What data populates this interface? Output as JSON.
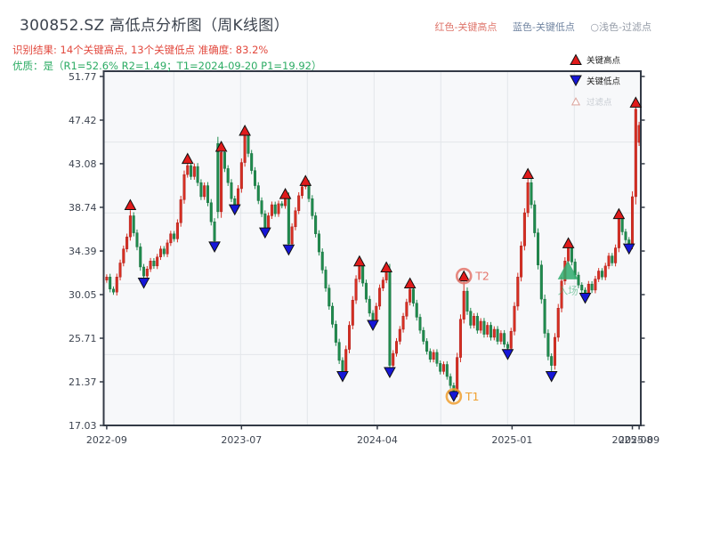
{
  "header": {
    "title": "300852.SZ 高低点分析图（周K线图）",
    "subtitle_result": "识别结果: 14个关键高点, 13个关键低点  准确度: 83.2%",
    "subtitle_quality": "优质：是（R1=52.6%  R2=1.49；T1=2024-09-20 P1=19.92）",
    "color_key": [
      {
        "label": "红色-关键高点",
        "color": "#df766c"
      },
      {
        "label": "蓝色-关键低点",
        "color": "#7286a2"
      },
      {
        "label": "○浅色-过滤点",
        "color": "#959ca8"
      }
    ]
  },
  "legend": {
    "items": [
      {
        "label": "关键高点",
        "marker": "triangle-up",
        "fill": "#e11b1b",
        "stroke": "#111111",
        "text": "#222222"
      },
      {
        "label": "关键低点",
        "marker": "triangle-down",
        "fill": "#1616d8",
        "stroke": "#111111",
        "text": "#222222"
      },
      {
        "label": "过滤点",
        "marker": "triangle-up-open",
        "fill": "#ffffff",
        "stroke": "#dca49c",
        "text": "#c6cbd1"
      }
    ]
  },
  "chart_data": {
    "type": "candlestick",
    "timeframe": "weekly",
    "title": "300852.SZ 高低点分析图（周K线图）",
    "ylim": [
      17.03,
      52.29
    ],
    "yticks": [
      51.77,
      47.42,
      43.08,
      38.74,
      34.39,
      30.05,
      25.71,
      21.37,
      17.03
    ],
    "xticks": [
      {
        "week": 0,
        "label": "2022-09"
      },
      {
        "week": 40,
        "label": "2023-07"
      },
      {
        "week": 80.3,
        "label": "2024-04"
      },
      {
        "week": 120.3,
        "label": "2025-01"
      },
      {
        "week": 156,
        "label": "2025-08"
      },
      {
        "week": 158,
        "label": "2025-09"
      }
    ],
    "first_open": 31.5,
    "closes": [
      31.8,
      30.6,
      30.3,
      31.8,
      33.2,
      34.6,
      35.8,
      37.9,
      36.2,
      34.8,
      32.8,
      31.9,
      32.6,
      33.4,
      32.9,
      33.8,
      34.6,
      34.1,
      35.2,
      36.1,
      35.6,
      37.2,
      39.5,
      42.0,
      42.9,
      41.8,
      42.8,
      41.2,
      39.8,
      40.9,
      39.2,
      37.3,
      35.4,
      38.3,
      44.2,
      42.6,
      41.2,
      39.6,
      38.9,
      40.6,
      43.2,
      45.9,
      44.1,
      42.4,
      40.9,
      39.4,
      38.1,
      36.6,
      37.9,
      39.0,
      38.1,
      39.1,
      38.9,
      39.7,
      35.1,
      36.8,
      38.4,
      39.9,
      40.8,
      41.1,
      39.6,
      37.9,
      36.1,
      34.3,
      32.5,
      30.7,
      28.9,
      27.1,
      25.3,
      23.5,
      22.4,
      24.6,
      27.0,
      29.5,
      31.6,
      32.9,
      31.2,
      29.6,
      28.2,
      27.4,
      28.9,
      30.7,
      31.5,
      32.3,
      23.0,
      24.2,
      25.4,
      26.6,
      27.9,
      29.3,
      30.6,
      29.2,
      27.8,
      26.5,
      25.4,
      24.4,
      23.6,
      24.3,
      23.2,
      22.4,
      23.1,
      21.9,
      21.0,
      20.3,
      23.8,
      27.6,
      30.4,
      28.4,
      27.0,
      27.9,
      26.5,
      27.4,
      26.1,
      27.0,
      25.8,
      26.6,
      25.4,
      26.2,
      25.1,
      24.7,
      26.4,
      28.9,
      31.8,
      34.9,
      38.2,
      41.2,
      39.0,
      36.2,
      33.0,
      29.6,
      26.2,
      23.9,
      23.0,
      25.8,
      28.7,
      31.4,
      33.4,
      34.8,
      33.3,
      32.0,
      31.0,
      30.5,
      30.1,
      31.1,
      30.5,
      31.6,
      32.4,
      31.8,
      32.9,
      33.9,
      33.2,
      34.7,
      37.6,
      36.3,
      35.5,
      35.1,
      39.8,
      48.5,
      46.9
    ],
    "open_overrides": {
      "33": 45.1,
      "158": 45.2
    },
    "key_highs": [
      [
        7,
        39.0
      ],
      [
        24,
        43.6
      ],
      [
        34,
        44.8
      ],
      [
        41,
        46.4
      ],
      [
        53,
        40.1
      ],
      [
        59,
        41.4
      ],
      [
        75,
        33.4
      ],
      [
        83,
        32.8
      ],
      [
        90,
        31.2
      ],
      [
        106,
        31.9
      ],
      [
        125,
        42.1
      ],
      [
        137,
        35.2
      ],
      [
        152,
        38.1
      ],
      [
        157,
        49.2
      ]
    ],
    "key_lows": [
      [
        11,
        31.2
      ],
      [
        32,
        34.8
      ],
      [
        38,
        38.5
      ],
      [
        47,
        36.2
      ],
      [
        54,
        34.5
      ],
      [
        70,
        21.9
      ],
      [
        79,
        27.0
      ],
      [
        84,
        22.3
      ],
      [
        103,
        19.92
      ],
      [
        119,
        24.1
      ],
      [
        132,
        21.9
      ],
      [
        142,
        29.7
      ],
      [
        155,
        34.6
      ]
    ],
    "annotations": {
      "t1": {
        "week": 103,
        "price": 19.92,
        "label": "T1",
        "color": "#f0a030"
      },
      "t2": {
        "week": 106,
        "price": 31.9,
        "label": "T2",
        "color": "#e4756b"
      },
      "entry": {
        "week": 137,
        "price": 32.5,
        "label": "入场",
        "color": "#2eac6c"
      }
    },
    "colors": {
      "up": "#d62f22",
      "up_edge": "#a31515",
      "down": "#1f8b4d",
      "down_edge": "#14663a",
      "high_marker": "#e11b1b",
      "low_marker": "#1616d8",
      "marker_edge": "#111111",
      "grid": "#e3e6ea",
      "plot_bg": "#f7f8fa",
      "spine": "#333a46",
      "tick_label": "#3d4450"
    },
    "legend_position": "upper-right",
    "grid": true
  }
}
